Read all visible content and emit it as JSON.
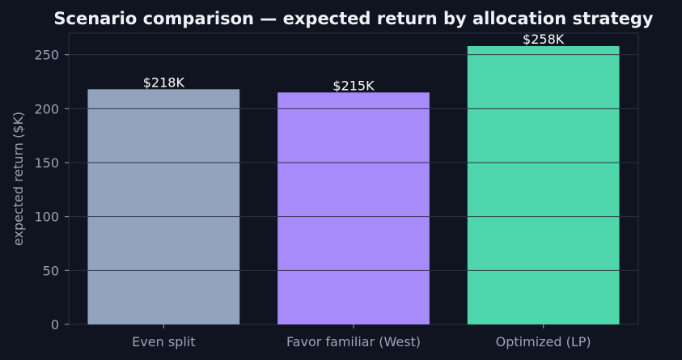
{
  "chart_data": {
    "type": "bar",
    "title": "Scenario comparison — expected return by allocation strategy",
    "xlabel": "",
    "ylabel": "expected return ($K)",
    "categories": [
      "Even split",
      "Favor familiar (West)",
      "Optimized (LP)"
    ],
    "values": [
      218,
      215,
      258
    ],
    "data_labels": [
      "$218K",
      "$215K",
      "$258K"
    ],
    "colors": [
      "#94a3bd",
      "#a78bfa",
      "#4fd6aa"
    ],
    "ylim": [
      0,
      270
    ],
    "yticks": [
      0,
      50,
      100,
      150,
      200,
      250
    ],
    "grid": true,
    "legend": "none"
  },
  "theme": {
    "background": "#0f1420",
    "plot_border": "#2a3347",
    "grid_color": "#2a3347",
    "text_color": "#eef1f7",
    "tick_color": "#9aa5b8"
  }
}
